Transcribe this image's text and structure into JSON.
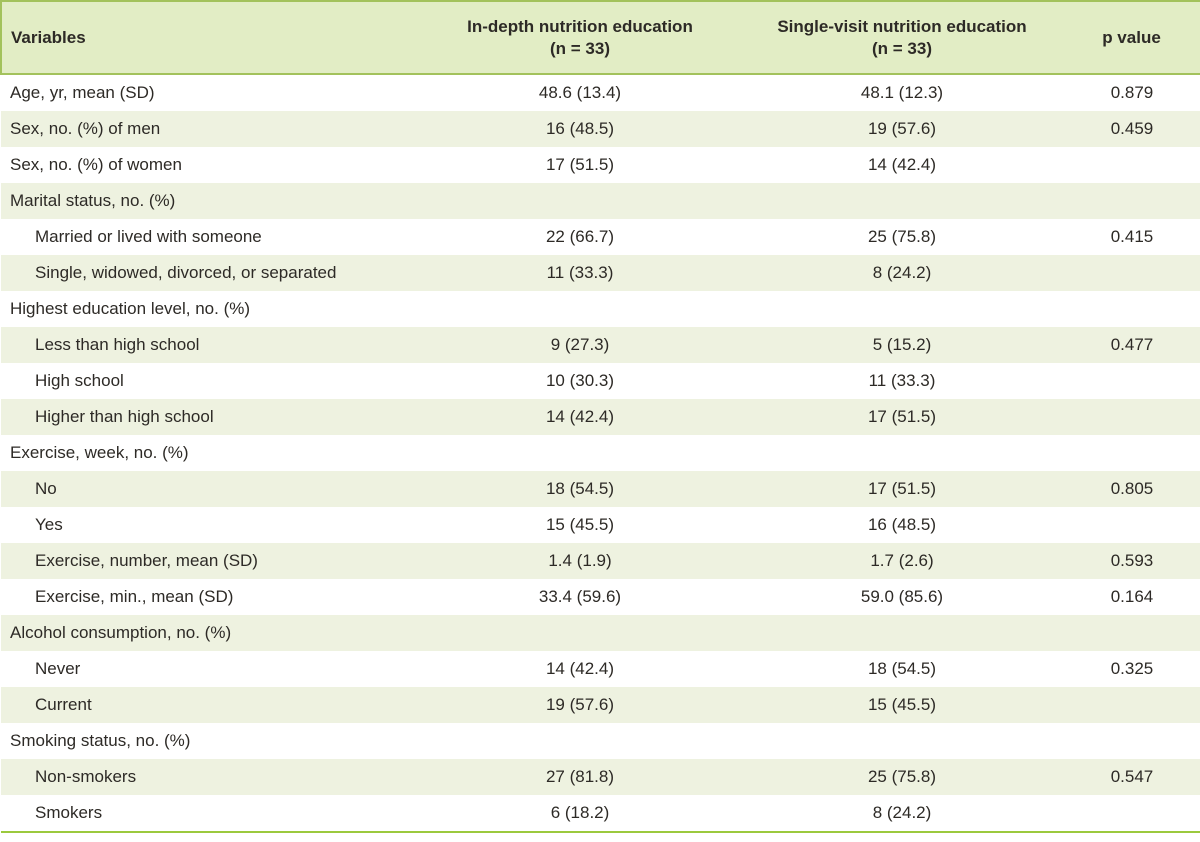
{
  "table": {
    "header": {
      "variables": "Variables",
      "col_indepth_line1": "In-depth nutrition education",
      "col_indepth_line2": "(n = 33)",
      "col_single_line1": "Single-visit nutrition education",
      "col_single_line2": "(n = 33)",
      "p_value": "p value"
    },
    "rows": [
      {
        "variable": "Age, yr, mean (SD)",
        "indent": false,
        "in_depth": "48.6 (13.4)",
        "single_visit": "48.1 (12.3)",
        "p_value": "0.879"
      },
      {
        "variable": "Sex, no. (%) of men",
        "indent": false,
        "in_depth": "16 (48.5)",
        "single_visit": "19 (57.6)",
        "p_value": "0.459"
      },
      {
        "variable": "Sex, no. (%) of women",
        "indent": false,
        "in_depth": "17 (51.5)",
        "single_visit": "14 (42.4)",
        "p_value": ""
      },
      {
        "variable": "Marital status, no. (%)",
        "indent": false,
        "in_depth": "",
        "single_visit": "",
        "p_value": ""
      },
      {
        "variable": "Married or lived with someone",
        "indent": true,
        "in_depth": "22 (66.7)",
        "single_visit": "25 (75.8)",
        "p_value": "0.415"
      },
      {
        "variable": "Single, widowed, divorced, or separated",
        "indent": true,
        "in_depth": "11 (33.3)",
        "single_visit": "8 (24.2)",
        "p_value": ""
      },
      {
        "variable": "Highest education level, no. (%)",
        "indent": false,
        "in_depth": "",
        "single_visit": "",
        "p_value": ""
      },
      {
        "variable": "Less than high school",
        "indent": true,
        "in_depth": "9 (27.3)",
        "single_visit": "5 (15.2)",
        "p_value": "0.477"
      },
      {
        "variable": "High school",
        "indent": true,
        "in_depth": "10 (30.3)",
        "single_visit": "11 (33.3)",
        "p_value": ""
      },
      {
        "variable": "Higher than high school",
        "indent": true,
        "in_depth": "14 (42.4)",
        "single_visit": "17 (51.5)",
        "p_value": ""
      },
      {
        "variable": "Exercise, week, no. (%)",
        "indent": false,
        "in_depth": "",
        "single_visit": "",
        "p_value": ""
      },
      {
        "variable": "No",
        "indent": true,
        "in_depth": "18 (54.5)",
        "single_visit": "17 (51.5)",
        "p_value": "0.805"
      },
      {
        "variable": "Yes",
        "indent": true,
        "in_depth": "15 (45.5)",
        "single_visit": "16 (48.5)",
        "p_value": ""
      },
      {
        "variable": "Exercise, number, mean (SD)",
        "indent": true,
        "in_depth": "1.4 (1.9)",
        "single_visit": "1.7 (2.6)",
        "p_value": "0.593"
      },
      {
        "variable": "Exercise, min., mean (SD)",
        "indent": true,
        "in_depth": "33.4 (59.6)",
        "single_visit": "59.0 (85.6)",
        "p_value": "0.164"
      },
      {
        "variable": "Alcohol consumption, no. (%)",
        "indent": false,
        "in_depth": "",
        "single_visit": "",
        "p_value": ""
      },
      {
        "variable": "Never",
        "indent": true,
        "in_depth": "14 (42.4)",
        "single_visit": "18 (54.5)",
        "p_value": "0.325"
      },
      {
        "variable": "Current",
        "indent": true,
        "in_depth": "19 (57.6)",
        "single_visit": "15 (45.5)",
        "p_value": ""
      },
      {
        "variable": "Smoking status, no. (%)",
        "indent": false,
        "in_depth": "",
        "single_visit": "",
        "p_value": ""
      },
      {
        "variable": "Non-smokers",
        "indent": true,
        "in_depth": "27 (81.8)",
        "single_visit": "25 (75.8)",
        "p_value": "0.547"
      },
      {
        "variable": "Smokers",
        "indent": true,
        "in_depth": "6 (18.2)",
        "single_visit": "8 (24.2)",
        "p_value": ""
      }
    ]
  },
  "colors": {
    "header_bg": "#e2edc5",
    "header_border": "#a3c25c",
    "stripe_bg": "#eef2e0",
    "bottom_line": "#9bc93d",
    "text": "#2d2a26"
  }
}
